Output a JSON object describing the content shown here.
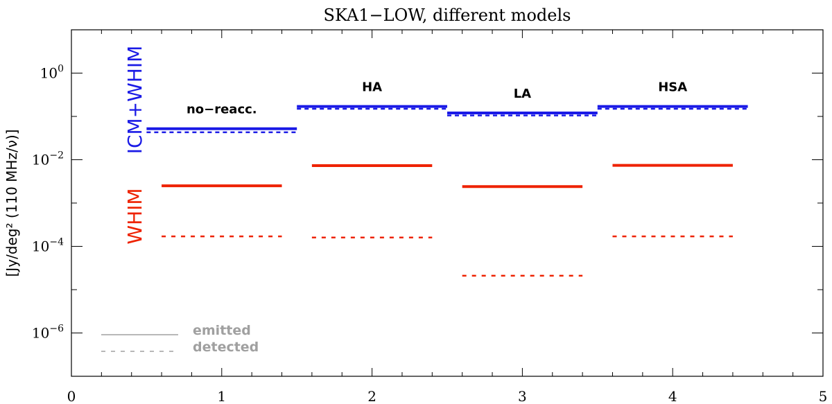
{
  "chart_data": {
    "type": "line",
    "title": "SKA1−LOW, different models",
    "ylabel": "[Jy/deg² (110 MHz/ν)]",
    "xlabel": "",
    "xlim": [
      0,
      5
    ],
    "ylim": [
      1e-07,
      10
    ],
    "yscale": "log",
    "x_ticks": [
      "0",
      "1",
      "2",
      "3",
      "4",
      "5"
    ],
    "y_ticks": [
      {
        "base": "10",
        "exp": "0",
        "value": 1
      },
      {
        "base": "10",
        "exp": "−2",
        "value": 0.01
      },
      {
        "base": "10",
        "exp": "−4",
        "value": 0.0001
      },
      {
        "base": "10",
        "exp": "−6",
        "value": 1e-06
      }
    ],
    "colors": {
      "icm_whim": "#1a1ae6",
      "whim": "#ee2200",
      "legend": "#a0a0a0"
    },
    "side_labels": {
      "icm_whim": "ICM+WHIM",
      "whim": "WHIM"
    },
    "models": [
      {
        "label": "no−reacc.",
        "icm_whim": {
          "x": [
            0.5,
            1.5
          ],
          "emitted": 0.052,
          "detected": 0.043
        },
        "whim": {
          "x": [
            0.6,
            1.4
          ],
          "emitted": 0.0025,
          "detected": 0.00017
        }
      },
      {
        "label": "HA",
        "icm_whim": {
          "x": [
            1.5,
            2.5
          ],
          "emitted": 0.17,
          "detected": 0.15
        },
        "whim": {
          "x": [
            1.6,
            2.4
          ],
          "emitted": 0.0073,
          "detected": 0.00016
        }
      },
      {
        "label": "LA",
        "icm_whim": {
          "x": [
            2.5,
            3.5
          ],
          "emitted": 0.12,
          "detected": 0.105
        },
        "whim": {
          "x": [
            2.6,
            3.4
          ],
          "emitted": 0.0024,
          "detected": 2.1e-05
        }
      },
      {
        "label": "HSA",
        "icm_whim": {
          "x": [
            3.5,
            4.5
          ],
          "emitted": 0.17,
          "detected": 0.15
        },
        "whim": {
          "x": [
            3.6,
            4.4
          ],
          "emitted": 0.0074,
          "detected": 0.00017
        }
      }
    ],
    "legend": {
      "position": "bottom-left",
      "emitted": "emitted",
      "detected": "detected"
    },
    "grid": false
  }
}
